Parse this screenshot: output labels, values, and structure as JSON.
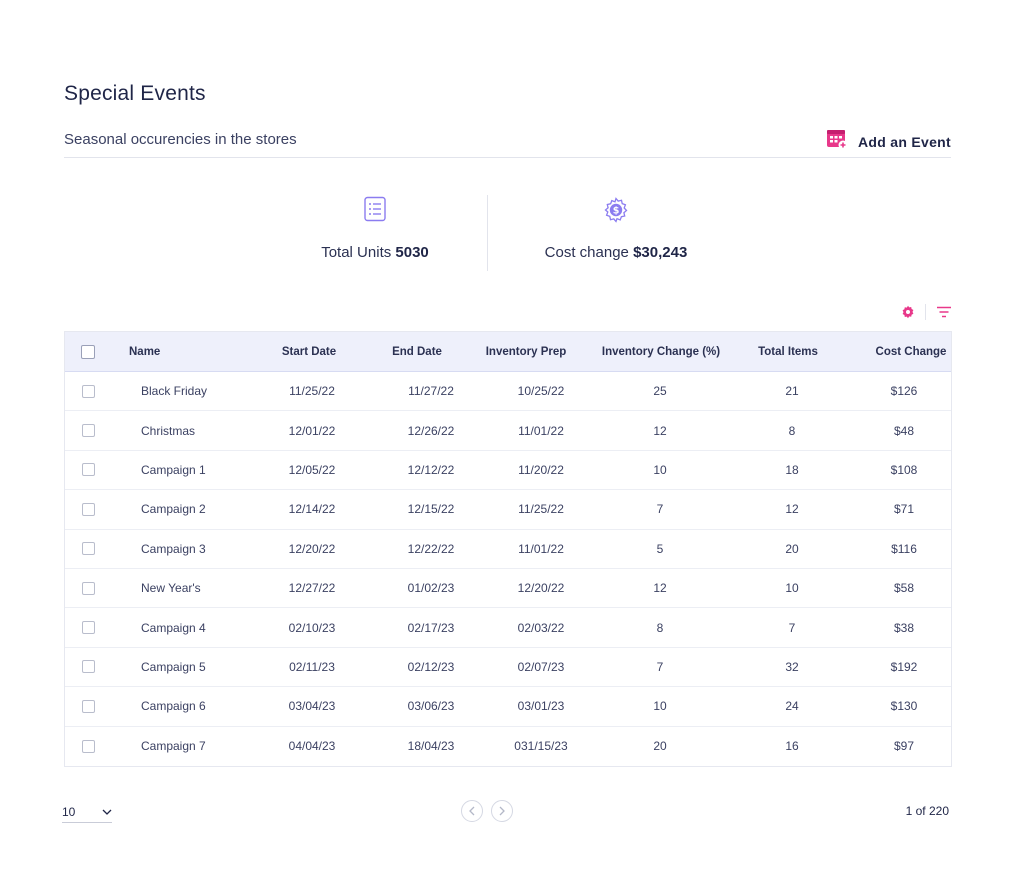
{
  "header": {
    "title": "Special Events",
    "subtitle": "Seasonal occurencies in the stores",
    "add_event_label": "Add an Event",
    "add_event_icon": "calendar-plus-icon",
    "accent": "#e8388a"
  },
  "stats": {
    "units_label": "Total Units",
    "units_value": "5030",
    "units_icon": "list-icon",
    "cost_label": "Cost change",
    "cost_value": "$30,243",
    "cost_icon": "gear-dollar-icon",
    "icon_color": "#8b7cf0"
  },
  "toolbar": {
    "settings_icon": "gear-icon",
    "filter_icon": "filter-icon"
  },
  "table": {
    "columns": [
      "Name",
      "Start Date",
      "End Date",
      "Inventory Prep",
      "Inventory Change (%)",
      "Total Items",
      "Cost Change"
    ],
    "rows": [
      [
        "Black Friday",
        "11/25/22",
        "11/27/22",
        "10/25/22",
        "25",
        "21",
        "$126"
      ],
      [
        "Christmas",
        "12/01/22",
        "12/26/22",
        "11/01/22",
        "12",
        "8",
        "$48"
      ],
      [
        "Campaign 1",
        "12/05/22",
        "12/12/22",
        "11/20/22",
        "10",
        "18",
        "$108"
      ],
      [
        "Campaign 2",
        "12/14/22",
        "12/15/22",
        "11/25/22",
        "7",
        "12",
        "$71"
      ],
      [
        "Campaign 3",
        "12/20/22",
        "12/22/22",
        "11/01/22",
        "5",
        "20",
        "$116"
      ],
      [
        "New Year's",
        "12/27/22",
        "01/02/23",
        "12/20/22",
        "12",
        "10",
        "$58"
      ],
      [
        "Campaign 4",
        "02/10/23",
        "02/17/23",
        "02/03/22",
        "8",
        "7",
        "$38"
      ],
      [
        "Campaign 5",
        "02/11/23",
        "02/12/23",
        "02/07/23",
        "7",
        "32",
        "$192"
      ],
      [
        "Campaign 6",
        "03/04/23",
        "03/06/23",
        "03/01/23",
        "10",
        "24",
        "$130"
      ],
      [
        "Campaign 7",
        "04/04/23",
        "18/04/23",
        "031/15/23",
        "20",
        "16",
        "$97"
      ]
    ]
  },
  "pagination": {
    "page_size": "10",
    "info": "1 of 220",
    "prev_icon": "chevron-left-icon",
    "next_icon": "chevron-right-icon",
    "dropdown_icon": "chevron-down-icon"
  }
}
